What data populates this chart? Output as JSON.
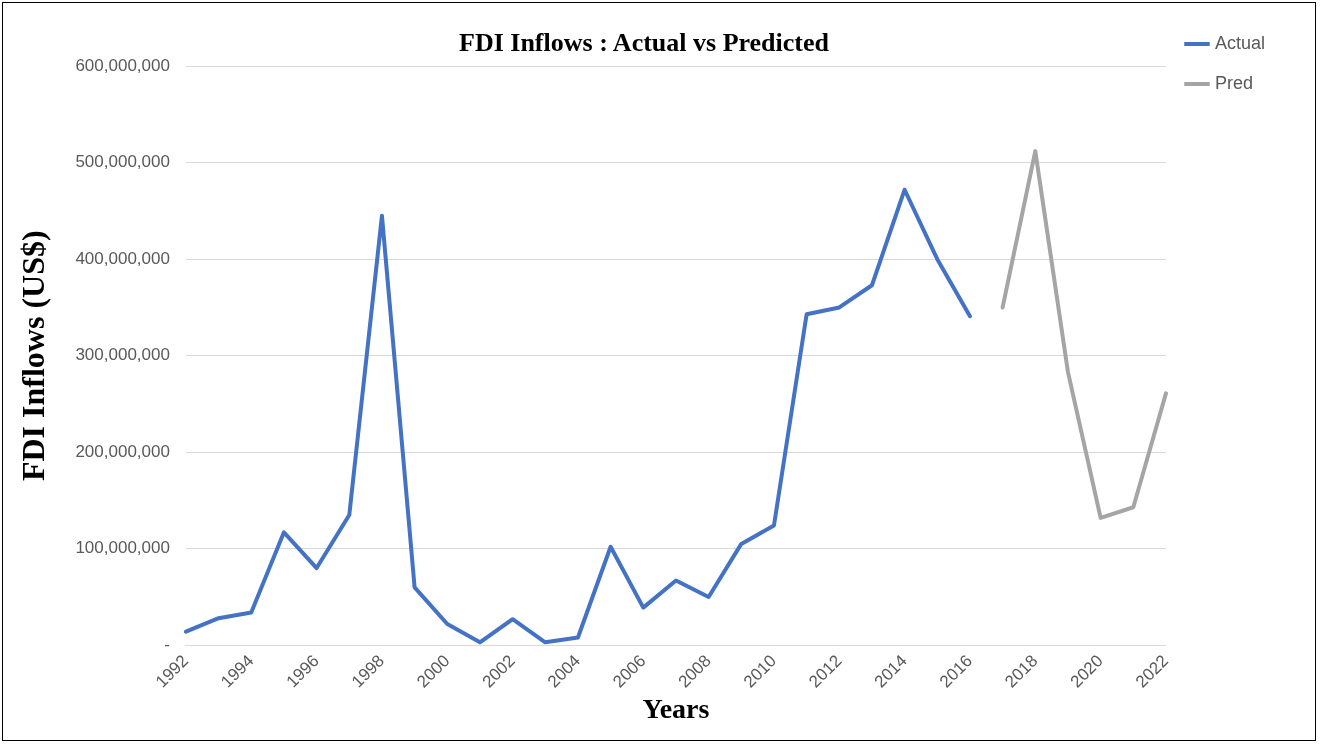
{
  "chart_data": {
    "type": "line",
    "title": "FDI Inflows : Actual vs Predicted",
    "xlabel": "Years",
    "ylabel": "FDI Inflows (US$)",
    "categories": [
      "1992",
      null,
      "1994",
      null,
      "1996",
      null,
      "1998",
      null,
      "2000",
      null,
      "2002",
      null,
      "2004",
      null,
      "2006",
      null,
      "2008",
      null,
      "2010",
      null,
      "2012",
      null,
      "2014",
      null,
      "2016",
      null,
      "2018",
      null,
      "2020",
      null,
      "2022"
    ],
    "series": [
      {
        "name": "Actual",
        "color": "#4472c4",
        "values": [
          14000000,
          28000000,
          34000000,
          117000000,
          80000000,
          135000000,
          445000000,
          60000000,
          22000000,
          3000000,
          27000000,
          3000000,
          8000000,
          102000000,
          39000000,
          67000000,
          50000000,
          105000000,
          124000000,
          343000000,
          350000000,
          373000000,
          472000000,
          400000000,
          341000000,
          null,
          null,
          null,
          null,
          null,
          null
        ]
      },
      {
        "name": "Pred",
        "color": "#a5a5a5",
        "values": [
          null,
          null,
          null,
          null,
          null,
          null,
          null,
          null,
          null,
          null,
          null,
          null,
          null,
          null,
          null,
          null,
          null,
          null,
          null,
          null,
          null,
          null,
          null,
          null,
          null,
          350000000,
          512000000,
          283000000,
          132000000,
          143000000,
          261000000
        ]
      }
    ],
    "ylim": [
      0,
      600000000
    ],
    "yticks": [
      {
        "value": 0,
        "label": "-"
      },
      {
        "value": 100000000,
        "label": "100,000,000"
      },
      {
        "value": 200000000,
        "label": "200,000,000"
      },
      {
        "value": 300000000,
        "label": "300,000,000"
      },
      {
        "value": 400000000,
        "label": "400,000,000"
      },
      {
        "value": 500000000,
        "label": "500,000,000"
      },
      {
        "value": 600000000,
        "label": "600,000,000"
      }
    ],
    "grid": "y",
    "legend": "top right",
    "marker": "none",
    "line_style": "solid"
  }
}
